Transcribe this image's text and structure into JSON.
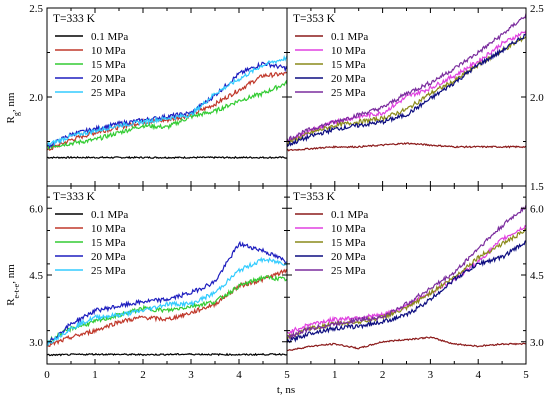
{
  "figure": {
    "xlabel": "t, ns",
    "ylabel_top": "R",
    "ylabel_top_sub": "g",
    "ylabel_top_unit": ", nm",
    "ylabel_bottom": "R",
    "ylabel_bottom_sub": "e-t-e",
    "ylabel_bottom_unit": ", nm"
  },
  "chart_data": [
    {
      "type": "line",
      "title": "T=333 K",
      "xlim": [
        0,
        5
      ],
      "ylim": [
        1.5,
        2.5
      ],
      "x_ticks": [
        "0",
        "1",
        "2",
        "3",
        "4",
        "5"
      ],
      "y_ticks": [
        "1.5",
        "2.0",
        "2.5"
      ],
      "legend_position": "top-left",
      "series": [
        {
          "name": "0.1 MPa",
          "color": "#000000",
          "x": [
            0,
            1,
            2,
            3,
            4,
            5
          ],
          "y": [
            1.66,
            1.66,
            1.66,
            1.66,
            1.66,
            1.66
          ]
        },
        {
          "name": "10 MPa",
          "color": "#c0392b",
          "x": [
            0,
            0.5,
            1,
            1.5,
            2,
            2.5,
            3,
            3.5,
            4,
            4.5,
            5
          ],
          "y": [
            1.7,
            1.76,
            1.8,
            1.83,
            1.86,
            1.87,
            1.9,
            1.96,
            2.04,
            2.12,
            2.13
          ]
        },
        {
          "name": "15 MPa",
          "color": "#33cc33",
          "x": [
            0,
            0.5,
            1,
            1.5,
            2,
            2.5,
            3,
            3.5,
            4,
            4.5,
            5
          ],
          "y": [
            1.72,
            1.74,
            1.76,
            1.8,
            1.84,
            1.83,
            1.89,
            1.92,
            1.98,
            2.02,
            2.08
          ]
        },
        {
          "name": "20 MPa",
          "color": "#1f1fbf",
          "x": [
            0,
            0.5,
            1,
            1.5,
            2,
            2.5,
            3,
            3.5,
            4,
            4.5,
            5
          ],
          "y": [
            1.72,
            1.79,
            1.82,
            1.85,
            1.87,
            1.89,
            1.91,
            2.01,
            2.13,
            2.19,
            2.16
          ]
        },
        {
          "name": "25 MPa",
          "color": "#33ccff",
          "x": [
            0,
            0.5,
            1,
            1.5,
            2,
            2.5,
            3,
            3.5,
            4,
            4.5,
            5
          ],
          "y": [
            1.73,
            1.78,
            1.81,
            1.84,
            1.86,
            1.88,
            1.9,
            2.02,
            2.1,
            2.18,
            2.22
          ]
        }
      ]
    },
    {
      "type": "line",
      "title": "T=353 K",
      "xlim": [
        0,
        5
      ],
      "ylim": [
        1.5,
        2.5
      ],
      "x_ticks": [
        "0",
        "1",
        "2",
        "3",
        "4",
        "5"
      ],
      "y_ticks": [
        "1.5",
        "2.0",
        "2.5"
      ],
      "legend_position": "top-left",
      "series": [
        {
          "name": "0.1 MPa",
          "color": "#8b1a1a",
          "x": [
            0,
            0.5,
            1,
            1.5,
            2,
            2.5,
            3,
            3.5,
            4,
            4.5,
            5
          ],
          "y": [
            1.7,
            1.71,
            1.72,
            1.72,
            1.73,
            1.74,
            1.73,
            1.72,
            1.72,
            1.72,
            1.72
          ]
        },
        {
          "name": "10 MPa",
          "color": "#e040e0",
          "x": [
            0,
            0.5,
            1,
            1.5,
            2,
            2.5,
            3,
            3.5,
            4,
            4.5,
            5
          ],
          "y": [
            1.75,
            1.81,
            1.86,
            1.89,
            1.91,
            2.0,
            2.05,
            2.12,
            2.2,
            2.3,
            2.37
          ]
        },
        {
          "name": "15 MPa",
          "color": "#8a8a1a",
          "x": [
            0,
            0.5,
            1,
            1.5,
            2,
            2.5,
            3,
            3.5,
            4,
            4.5,
            5
          ],
          "y": [
            1.74,
            1.8,
            1.84,
            1.86,
            1.88,
            1.93,
            2.02,
            2.09,
            2.18,
            2.26,
            2.34
          ]
        },
        {
          "name": "20 MPa",
          "color": "#0d0d80",
          "x": [
            0,
            0.5,
            1,
            1.5,
            2,
            2.5,
            3,
            3.5,
            4,
            4.5,
            5
          ],
          "y": [
            1.73,
            1.78,
            1.82,
            1.84,
            1.86,
            1.9,
            1.99,
            2.08,
            2.18,
            2.26,
            2.35
          ]
        },
        {
          "name": "25 MPa",
          "color": "#7b2d9e",
          "x": [
            0,
            0.5,
            1,
            1.5,
            2,
            2.5,
            3,
            3.5,
            4,
            4.5,
            5
          ],
          "y": [
            1.76,
            1.82,
            1.86,
            1.9,
            1.94,
            2.02,
            2.08,
            2.16,
            2.25,
            2.35,
            2.46
          ]
        }
      ]
    },
    {
      "type": "line",
      "title": "T=333 K",
      "xlim": [
        0,
        5
      ],
      "ylim": [
        2.5,
        6.5
      ],
      "x_ticks": [
        "0",
        "1",
        "2",
        "3",
        "4",
        "5"
      ],
      "y_ticks": [
        "3.0",
        "4.5",
        "6.0"
      ],
      "legend_position": "top-left",
      "series": [
        {
          "name": "0.1 MPa",
          "color": "#000000",
          "x": [
            0,
            1,
            2,
            3,
            4,
            5
          ],
          "y": [
            2.7,
            2.72,
            2.71,
            2.72,
            2.71,
            2.72
          ]
        },
        {
          "name": "10 MPa",
          "color": "#c0392b",
          "x": [
            0,
            0.5,
            1,
            1.5,
            2,
            2.5,
            3,
            3.5,
            4,
            4.5,
            5
          ],
          "y": [
            2.9,
            3.1,
            3.25,
            3.45,
            3.55,
            3.5,
            3.65,
            3.85,
            4.25,
            4.4,
            4.6
          ]
        },
        {
          "name": "15 MPa",
          "color": "#33cc33",
          "x": [
            0,
            0.5,
            1,
            1.5,
            2,
            2.5,
            3,
            3.5,
            4,
            4.5,
            5
          ],
          "y": [
            3.0,
            3.3,
            3.45,
            3.6,
            3.75,
            3.7,
            3.8,
            3.9,
            4.25,
            4.45,
            4.4
          ]
        },
        {
          "name": "20 MPa",
          "color": "#1f1fbf",
          "x": [
            0,
            0.5,
            1,
            1.5,
            2,
            2.5,
            3,
            3.5,
            4,
            4.5,
            5
          ],
          "y": [
            2.95,
            3.4,
            3.7,
            3.8,
            3.9,
            3.95,
            4.1,
            4.35,
            5.2,
            5.05,
            4.8
          ]
        },
        {
          "name": "25 MPa",
          "color": "#33ccff",
          "x": [
            0,
            0.5,
            1,
            1.5,
            2,
            2.5,
            3,
            3.5,
            4,
            4.5,
            5
          ],
          "y": [
            2.95,
            3.3,
            3.55,
            3.6,
            3.7,
            3.85,
            3.85,
            4.1,
            4.6,
            4.85,
            4.75
          ]
        }
      ]
    },
    {
      "type": "line",
      "title": "T=353 K",
      "xlim": [
        0,
        5
      ],
      "ylim": [
        2.5,
        6.5
      ],
      "x_ticks": [
        "0",
        "1",
        "2",
        "3",
        "4",
        "5"
      ],
      "y_ticks": [
        "3.0",
        "4.5",
        "6.0"
      ],
      "legend_position": "top-left",
      "series": [
        {
          "name": "0.1 MPa",
          "color": "#8b1a1a",
          "x": [
            0,
            0.5,
            1,
            1.5,
            2,
            2.5,
            3,
            3.5,
            4,
            4.5,
            5
          ],
          "y": [
            2.8,
            2.9,
            2.95,
            2.85,
            3.0,
            3.05,
            3.1,
            2.95,
            2.9,
            2.95,
            2.95
          ]
        },
        {
          "name": "10 MPa",
          "color": "#e040e0",
          "x": [
            0,
            0.5,
            1,
            1.5,
            2,
            2.5,
            3,
            3.5,
            4,
            4.5,
            5
          ],
          "y": [
            3.2,
            3.4,
            3.5,
            3.55,
            3.6,
            3.8,
            4.1,
            4.4,
            4.8,
            5.3,
            5.6
          ]
        },
        {
          "name": "15 MPa",
          "color": "#8a8a1a",
          "x": [
            0,
            0.5,
            1,
            1.5,
            2,
            2.5,
            3,
            3.5,
            4,
            4.5,
            5
          ],
          "y": [
            3.1,
            3.3,
            3.4,
            3.45,
            3.55,
            3.75,
            4.1,
            4.45,
            4.9,
            5.2,
            5.5
          ]
        },
        {
          "name": "20 MPa",
          "color": "#0d0d80",
          "x": [
            0,
            0.5,
            1,
            1.5,
            2,
            2.5,
            3,
            3.5,
            4,
            4.5,
            5
          ],
          "y": [
            3.0,
            3.2,
            3.3,
            3.35,
            3.45,
            3.6,
            3.95,
            4.4,
            4.75,
            4.9,
            5.25
          ]
        },
        {
          "name": "25 MPa",
          "color": "#7b2d9e",
          "x": [
            0,
            0.5,
            1,
            1.5,
            2,
            2.5,
            3,
            3.5,
            4,
            4.5,
            5
          ],
          "y": [
            3.1,
            3.3,
            3.4,
            3.5,
            3.55,
            3.85,
            4.2,
            4.55,
            5.1,
            5.6,
            6.05
          ]
        }
      ]
    }
  ]
}
